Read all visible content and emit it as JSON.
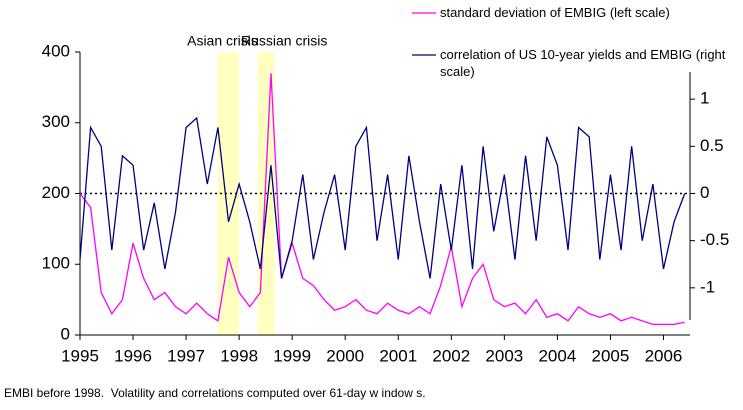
{
  "chart_data": {
    "type": "line",
    "x": [
      1995,
      1995.2,
      1995.4,
      1995.6,
      1995.8,
      1996,
      1996.2,
      1996.4,
      1996.6,
      1996.8,
      1997,
      1997.2,
      1997.4,
      1997.6,
      1997.8,
      1998,
      1998.2,
      1998.4,
      1998.6,
      1998.8,
      1999,
      1999.2,
      1999.4,
      1999.6,
      1999.8,
      2000,
      2000.2,
      2000.4,
      2000.6,
      2000.8,
      2001,
      2001.2,
      2001.4,
      2001.6,
      2001.8,
      2002,
      2002.2,
      2002.4,
      2002.6,
      2002.8,
      2003,
      2003.2,
      2003.4,
      2003.6,
      2003.8,
      2004,
      2004.2,
      2004.4,
      2004.6,
      2004.8,
      2005,
      2005.2,
      2005.4,
      2005.6,
      2005.8,
      2006,
      2006.2,
      2006.4
    ],
    "series": [
      {
        "name": "standard deviation of EMBIG (left scale)",
        "color": "#ff00ff",
        "values": [
          200,
          180,
          60,
          30,
          50,
          130,
          80,
          50,
          60,
          40,
          30,
          45,
          30,
          20,
          110,
          60,
          40,
          60,
          370,
          80,
          130,
          80,
          70,
          50,
          35,
          40,
          50,
          35,
          30,
          45,
          35,
          30,
          40,
          30,
          70,
          125,
          40,
          80,
          100,
          50,
          40,
          45,
          30,
          50,
          25,
          30,
          20,
          40,
          30,
          25,
          30,
          20,
          25,
          20,
          15,
          15,
          15,
          18
        ]
      },
      {
        "name": "correlation of US 10-year yields and EMBIG (right scale)",
        "color": "#000080",
        "axis": "y2",
        "values": [
          -0.7,
          0.7,
          0.5,
          -0.6,
          0.4,
          0.3,
          -0.6,
          -0.1,
          -0.8,
          -0.2,
          0.7,
          0.8,
          0.1,
          0.7,
          -0.3,
          0.1,
          -0.3,
          -0.8,
          0.3,
          -0.9,
          -0.5,
          0.2,
          -0.7,
          -0.2,
          0.2,
          -0.6,
          0.5,
          0.7,
          -0.5,
          0.2,
          -0.7,
          0.4,
          -0.3,
          -0.9,
          0.1,
          -0.6,
          0.3,
          -0.8,
          0.5,
          -0.4,
          0.2,
          -0.7,
          0.4,
          -0.5,
          0.6,
          0.3,
          -0.6,
          0.7,
          0.6,
          -0.7,
          0.2,
          -0.6,
          0.5,
          -0.5,
          0.1,
          -0.8,
          -0.3,
          0.0
        ]
      }
    ],
    "xlim": [
      1995,
      2006.5
    ],
    "xticks": [
      1995,
      1996,
      1997,
      1998,
      1999,
      2000,
      2001,
      2002,
      2003,
      2004,
      2005,
      2006
    ],
    "ylim": [
      0,
      400
    ],
    "yticks": [
      0,
      100,
      200,
      300,
      400
    ],
    "y2lim": [
      -1.5,
      1.5
    ],
    "y2ticks": [
      -1,
      -0.5,
      0,
      0.5,
      1
    ],
    "reference_line": {
      "axis": "y2",
      "value": 0
    },
    "shaded_regions": [
      {
        "label": "Asian crisis",
        "x": [
          1997.6,
          1998.0
        ],
        "color": "#ffffc0"
      },
      {
        "label": "Russian crisis",
        "x": [
          1998.35,
          1998.67
        ],
        "color": "#ffffc0"
      }
    ],
    "footnote": "EMBI before 1998.  Volatility and correlations computed over 61-day w indow s."
  }
}
